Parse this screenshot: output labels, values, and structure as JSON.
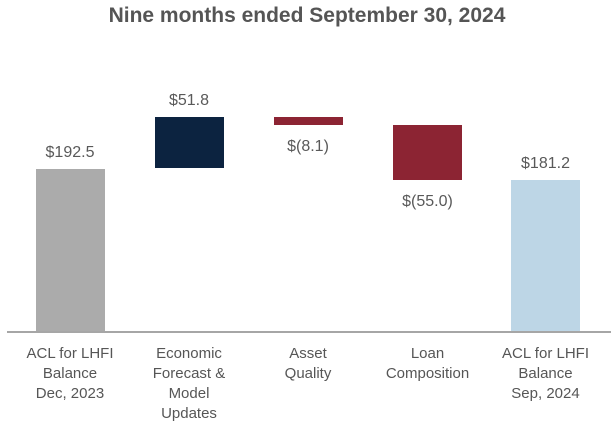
{
  "title": "Nine months ended September 30, 2024",
  "colors": {
    "total_start_bar": "#ABABAB",
    "increase_bar": "#0C2340",
    "decrease_bar": "#8C2433",
    "total_end_bar": "#BDD6E6",
    "axis_line": "#A6A6A6",
    "text": "#595959"
  },
  "chart_data": {
    "type": "bar",
    "subtype": "waterfall",
    "title": "Nine months ended September 30, 2024",
    "xlabel": "",
    "ylabel": "",
    "y_axis_visible": false,
    "gridlines": false,
    "legend": "none",
    "value_axis_crop_min": 30,
    "ylim": [
      30,
      260
    ],
    "categories": [
      "ACL for LHFI\nBalance\nDec, 2023",
      "Economic\nForecast &\nModel\nUpdates",
      "Asset\nQuality",
      "Loan\nComposition",
      "ACL for LHFI\nBalance\nSep, 2024"
    ],
    "bars": [
      {
        "key": "acl-lhfi-balance-dec-2023",
        "category": "ACL for LHFI\nBalance\nDec, 2023",
        "value": 192.5,
        "role": "total",
        "label": "$192.5",
        "label_position": "above",
        "color": "#ABABAB"
      },
      {
        "key": "economic-forecast-model-updates",
        "category": "Economic\nForecast &\nModel\nUpdates",
        "value": 51.8,
        "role": "increase",
        "label": "$51.8",
        "label_position": "above",
        "color": "#0C2340"
      },
      {
        "key": "asset-quality",
        "category": "Asset\nQuality",
        "value": -8.1,
        "role": "decrease",
        "label": "$(8.1)",
        "label_position": "below",
        "color": "#8C2433"
      },
      {
        "key": "loan-composition",
        "category": "Loan\nComposition",
        "value": -55.0,
        "role": "decrease",
        "label": "$(55.0)",
        "label_position": "below",
        "color": "#8C2433"
      },
      {
        "key": "acl-lhfi-balance-sep-2024",
        "category": "ACL for LHFI\nBalance\nSep, 2024",
        "value": 181.2,
        "role": "total",
        "label": "$181.2",
        "label_position": "above",
        "color": "#BDD6E6"
      }
    ]
  }
}
